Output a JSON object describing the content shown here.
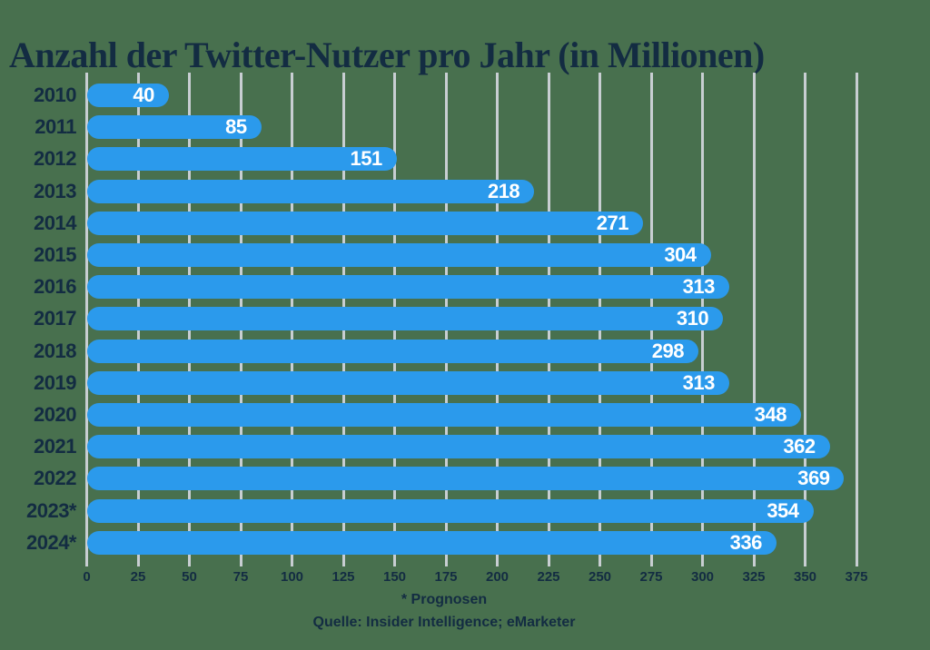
{
  "title": "Anzahl der Twitter-Nutzer pro Jahr (in Millionen)",
  "footer": {
    "footnote": "* Prognosen",
    "source": "Quelle: Insider Intelligence; eMarketer"
  },
  "colors": {
    "background": "#48704E",
    "bar": "#2B9AEC",
    "text_dark": "#132C42",
    "gridline": "#C8CED2",
    "value_text": "#FFFFFF"
  },
  "chart_data": {
    "type": "bar",
    "orientation": "horizontal",
    "title": "Anzahl der Twitter-Nutzer pro Jahr (in Millionen)",
    "categories": [
      "2010",
      "2011",
      "2012",
      "2013",
      "2014",
      "2015",
      "2016",
      "2017",
      "2018",
      "2019",
      "2020",
      "2021",
      "2022",
      "2023*",
      "2024*"
    ],
    "values": [
      40,
      85,
      151,
      218,
      271,
      304,
      313,
      310,
      298,
      313,
      348,
      362,
      369,
      354,
      336
    ],
    "xlabel": "",
    "ylabel": "",
    "xlim": [
      0,
      375
    ],
    "x_ticks": [
      0,
      25,
      50,
      75,
      100,
      125,
      150,
      175,
      200,
      225,
      250,
      275,
      300,
      325,
      350,
      375
    ],
    "grid": true,
    "value_labels": "inside-end",
    "legend": "none",
    "footnote": "* Prognosen",
    "source": "Quelle: Insider Intelligence; eMarketer"
  }
}
